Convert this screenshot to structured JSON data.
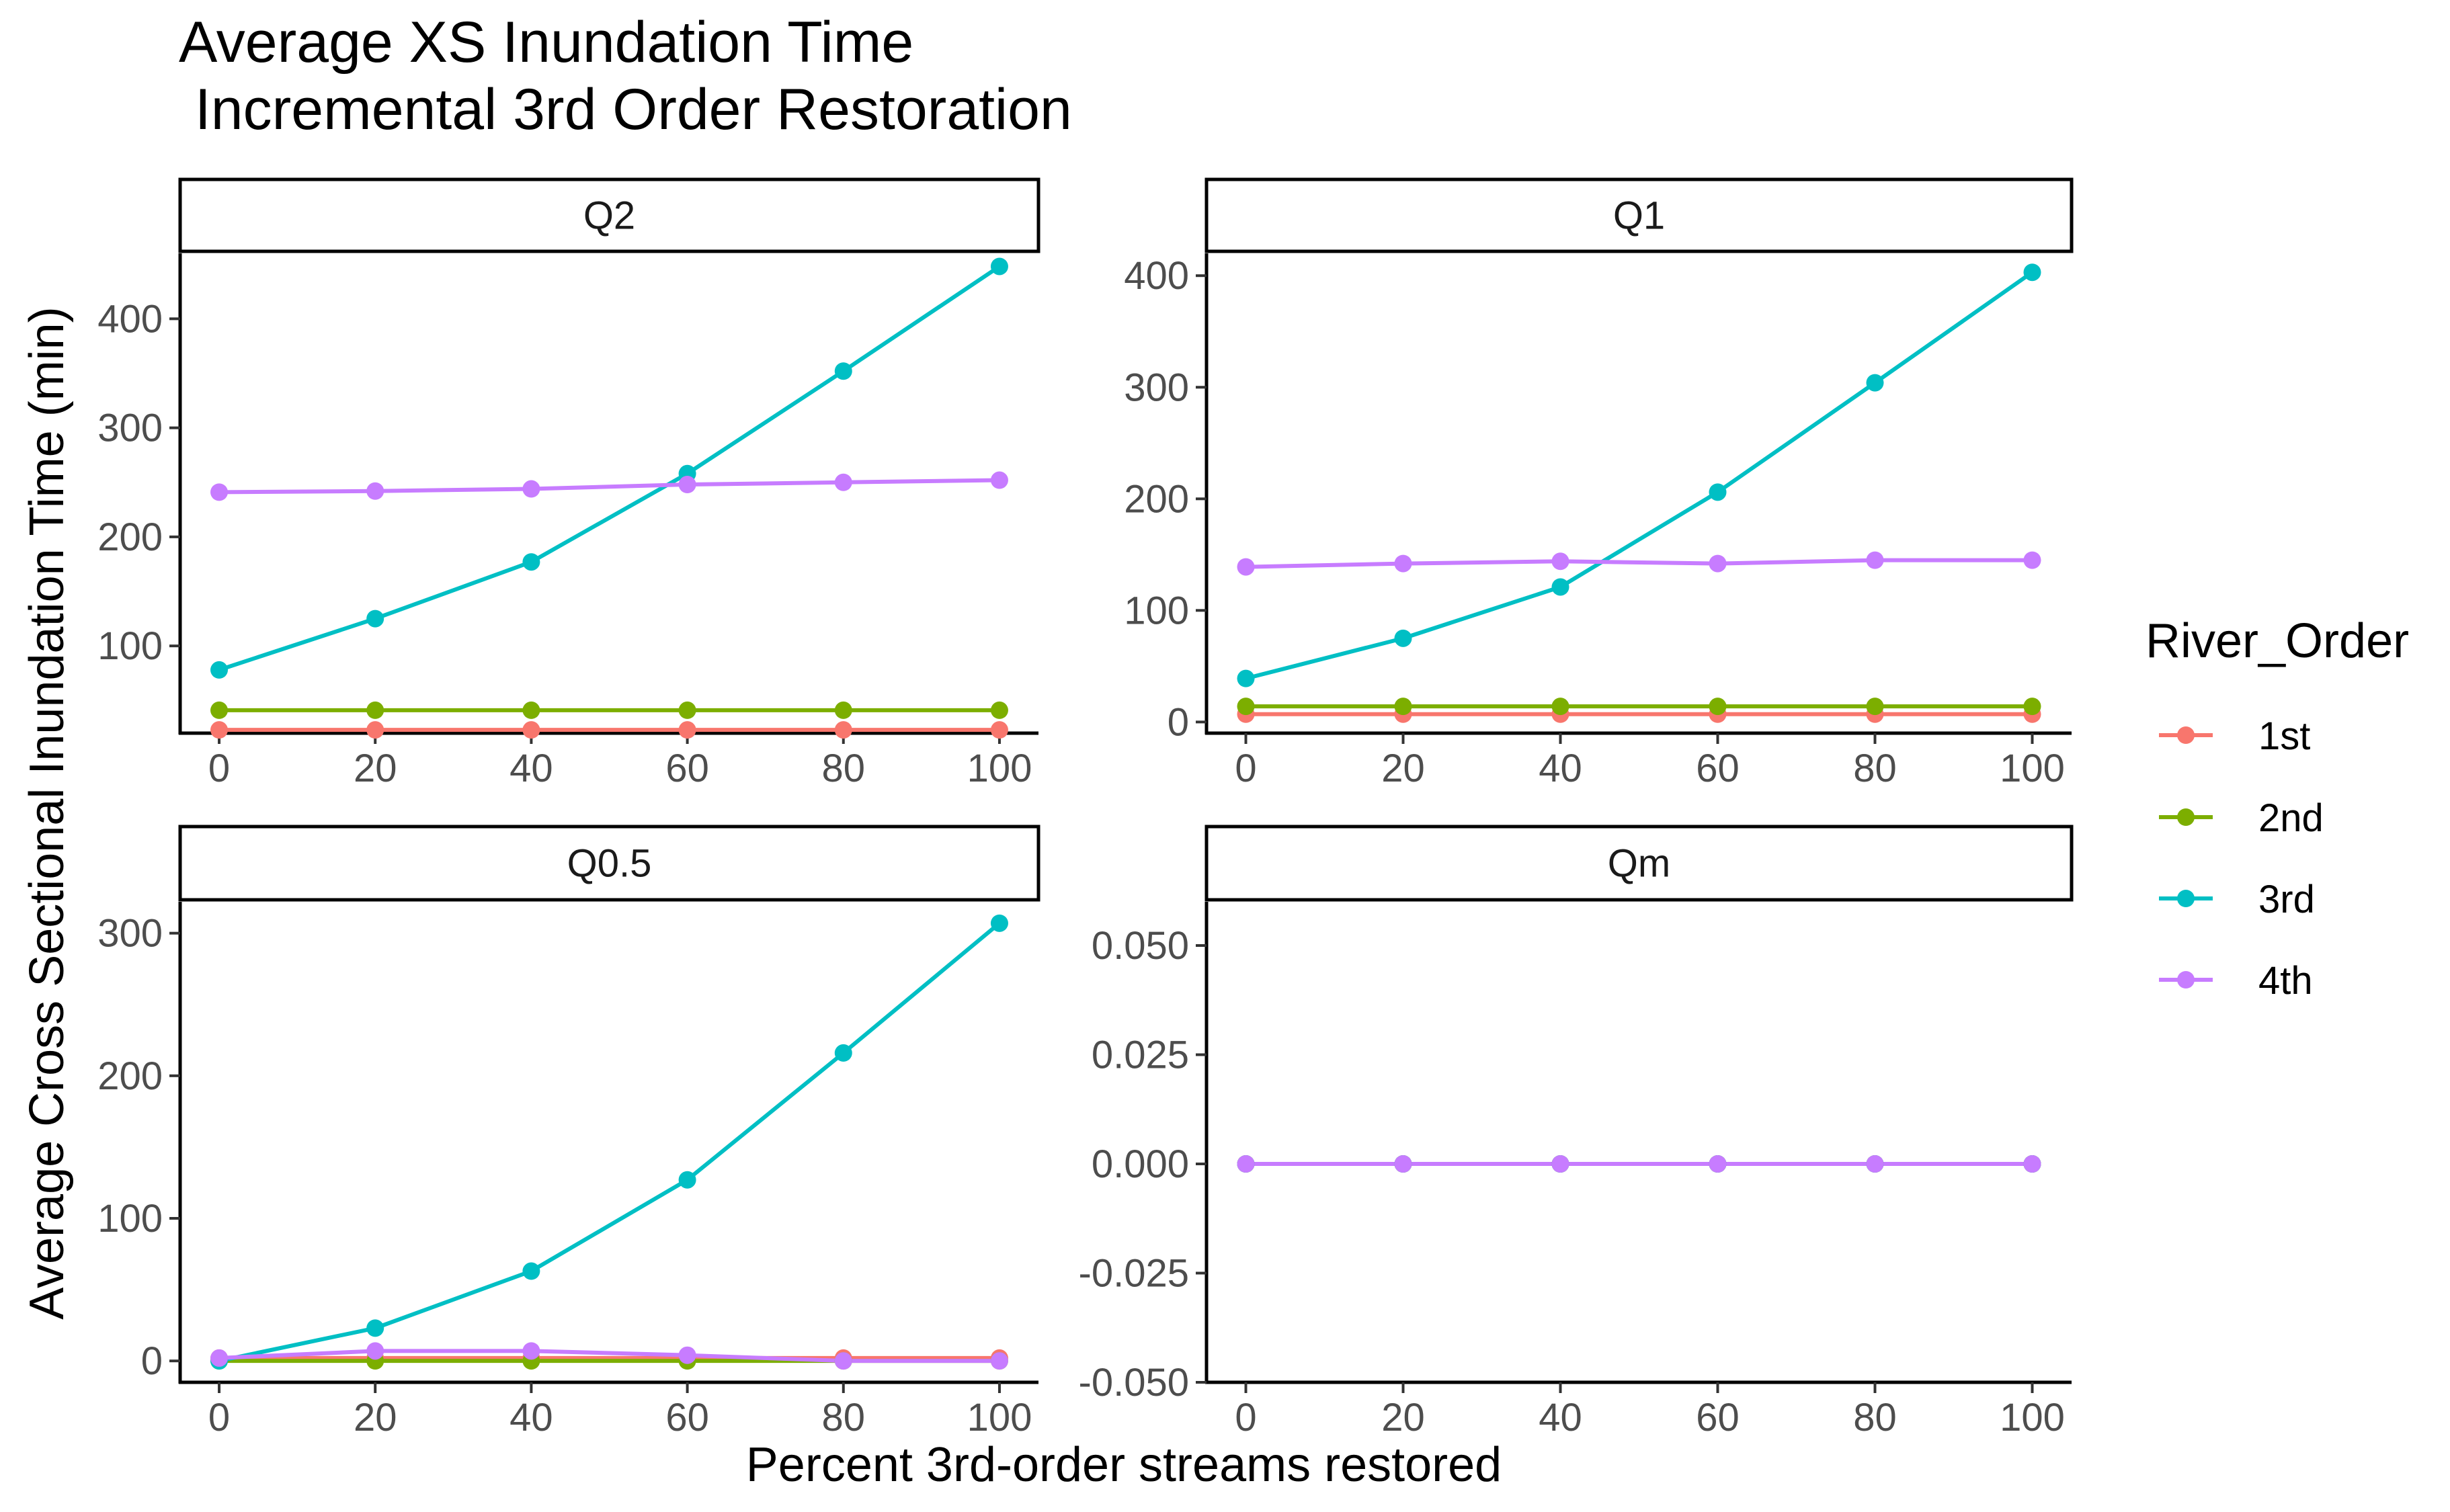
{
  "chart_data": {
    "type": "line",
    "title_lines": [
      "Average XS Inundation Time",
      " Incremental 3rd Order Restoration"
    ],
    "xlabel": "Percent 3rd-order streams restored",
    "ylabel": "Average Cross Sectional Inundation Time (min)",
    "x": [
      0,
      20,
      40,
      60,
      80,
      100
    ],
    "x_ticks": [
      "0",
      "20",
      "40",
      "60",
      "80",
      "100"
    ],
    "xlim": [
      -5,
      105
    ],
    "legend": {
      "title": "River_Order",
      "position": "right",
      "entries": [
        "1st",
        "2nd",
        "3rd",
        "4th"
      ]
    },
    "colors": {
      "1st": "#F8766D",
      "2nd": "#7CAE00",
      "3rd": "#00BFC4",
      "4th": "#C77CFF"
    },
    "grid": false,
    "panels": [
      {
        "strip": "Q2",
        "ylim": [
          20,
          460
        ],
        "y_ticks": [
          100,
          200,
          300,
          400
        ],
        "y_tick_labels": [
          "100",
          "200",
          "300",
          "400"
        ],
        "series": [
          {
            "name": "1st",
            "values": [
              23,
              23,
              23,
              23,
              23,
              23
            ]
          },
          {
            "name": "2nd",
            "values": [
              41,
              41,
              41,
              41,
              41,
              41
            ]
          },
          {
            "name": "3rd",
            "values": [
              78,
              125,
              177,
              258,
              352,
              448
            ]
          },
          {
            "name": "4th",
            "values": [
              241,
              242,
              244,
              248,
              250,
              252
            ]
          }
        ]
      },
      {
        "strip": "Q1",
        "ylim": [
          -10,
          420
        ],
        "y_ticks": [
          0,
          100,
          200,
          300,
          400
        ],
        "y_tick_labels": [
          "0",
          "100",
          "200",
          "300",
          "400"
        ],
        "series": [
          {
            "name": "1st",
            "values": [
              7,
              7,
              7,
              7,
              7,
              7
            ]
          },
          {
            "name": "2nd",
            "values": [
              14,
              14,
              14,
              14,
              14,
              14
            ]
          },
          {
            "name": "3rd",
            "values": [
              39,
              75,
              121,
              206,
              304,
              403
            ]
          },
          {
            "name": "4th",
            "values": [
              139,
              142,
              144,
              142,
              145,
              145
            ]
          }
        ]
      },
      {
        "strip": "Q0.5",
        "ylim": [
          -15,
          322
        ],
        "y_ticks": [
          0,
          100,
          200,
          300
        ],
        "y_tick_labels": [
          "0",
          "100",
          "200",
          "300"
        ],
        "series": [
          {
            "name": "1st",
            "values": [
              2,
              2,
              2,
              2,
              2,
              2
            ]
          },
          {
            "name": "2nd",
            "values": [
              0,
              0,
              0,
              0,
              0,
              0
            ]
          },
          {
            "name": "3rd",
            "values": [
              0,
              23,
              63,
              127,
              216,
              307
            ]
          },
          {
            "name": "4th",
            "values": [
              2,
              7,
              7,
              4,
              0,
              0
            ]
          }
        ]
      },
      {
        "strip": "Qm",
        "ylim": [
          -0.05,
          0.06
        ],
        "y_ticks": [
          -0.05,
          -0.025,
          0,
          0.025,
          0.05
        ],
        "y_tick_labels": [
          "-0.050",
          "-0.025",
          "0.000",
          "0.025",
          "0.050"
        ],
        "series": [
          {
            "name": "1st",
            "values": [
              0,
              0,
              0,
              0,
              0,
              0
            ]
          },
          {
            "name": "2nd",
            "values": [
              0,
              0,
              0,
              0,
              0,
              0
            ]
          },
          {
            "name": "3rd",
            "values": [
              0,
              0,
              0,
              0,
              0,
              0
            ]
          },
          {
            "name": "4th",
            "values": [
              0,
              0,
              0,
              0,
              0,
              0
            ]
          }
        ]
      }
    ]
  }
}
